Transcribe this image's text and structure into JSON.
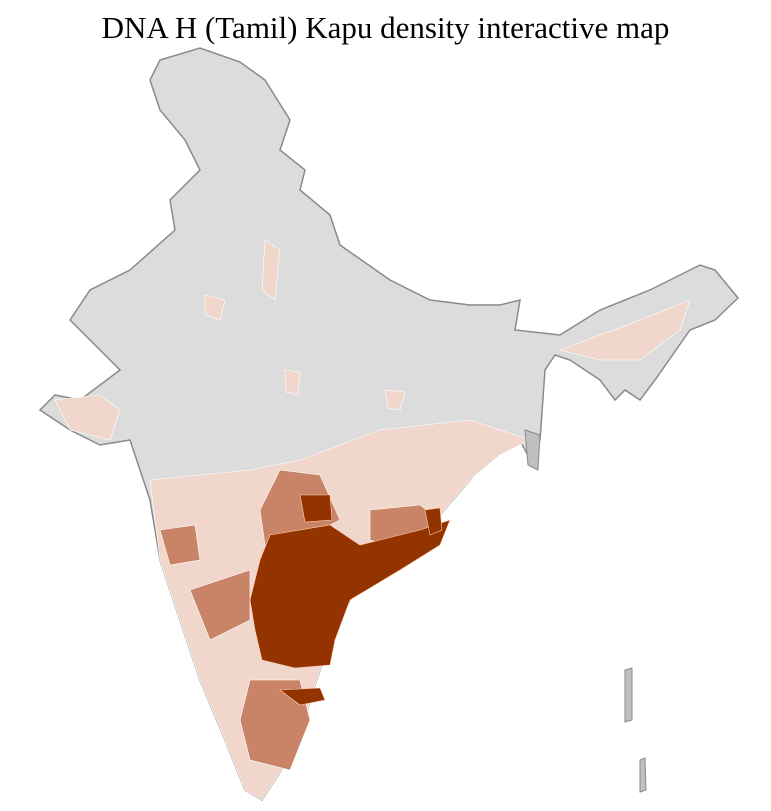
{
  "title": "DNA H (Tamil) Kapu density interactive map",
  "map": {
    "type": "choropleth",
    "region": "India districts",
    "colors": {
      "no_data": "#dcdcdc",
      "low": "#f0d6cb",
      "medium": "#c98467",
      "high": "#933300",
      "border_state": "#8a8a8a",
      "border_district": "#ffffff"
    }
  }
}
